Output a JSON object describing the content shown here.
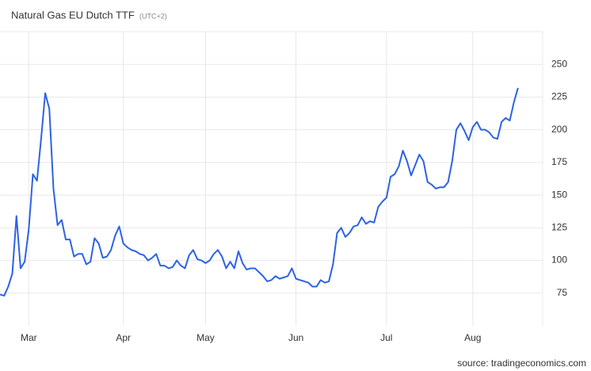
{
  "chart_data": {
    "type": "line",
    "title": "Natural Gas EU Dutch TTF",
    "subtitle": "(UTC+2)",
    "source": "source: tradingeconomics.com",
    "x": [
      0,
      1,
      2,
      3,
      4,
      5,
      6,
      7,
      8,
      9,
      10,
      11,
      12,
      13,
      14,
      15,
      16,
      17,
      18,
      19,
      20,
      21,
      22,
      23,
      24,
      25,
      26,
      27,
      28,
      29,
      30,
      31,
      32,
      33,
      34,
      35,
      36,
      37,
      38,
      39,
      40,
      41,
      42,
      43,
      44,
      45,
      46,
      47,
      48,
      49,
      50,
      51,
      52,
      53,
      54,
      55,
      56,
      57,
      58,
      59,
      60,
      61,
      62,
      63,
      64,
      65,
      66,
      67,
      68,
      69,
      70,
      71,
      72,
      73,
      74,
      75,
      76,
      77,
      78,
      79,
      80,
      81,
      82,
      83,
      84,
      85,
      86,
      87,
      88,
      89,
      90,
      91,
      92,
      93,
      94,
      95,
      96,
      97,
      98,
      99,
      100,
      101,
      102,
      103,
      104,
      105,
      106,
      107,
      108,
      109,
      110,
      111,
      112,
      113,
      114,
      115,
      116,
      117,
      118,
      119,
      120,
      121,
      122,
      123,
      124,
      125,
      126
    ],
    "series": [
      {
        "name": "Natural Gas EU Dutch TTF",
        "color": "#2d62e6",
        "values": [
          74,
          73,
          80,
          90,
          134,
          94,
          99,
          124,
          166,
          161,
          193,
          228,
          216,
          155,
          127,
          131,
          116,
          116,
          103,
          105,
          105,
          97,
          99,
          117,
          113,
          102,
          103,
          108,
          119,
          126,
          113,
          110,
          108,
          107,
          105,
          104,
          100,
          102,
          105,
          96,
          96,
          94,
          95,
          100,
          96,
          94,
          104,
          108,
          101,
          100,
          98,
          100,
          105,
          108,
          103,
          94,
          99,
          94,
          107,
          98,
          93,
          94,
          94,
          91,
          88,
          84,
          85,
          88,
          86,
          87,
          88,
          94,
          86,
          85,
          84,
          83,
          80,
          80,
          85,
          83,
          84,
          97,
          121,
          125,
          118,
          121,
          126,
          127,
          133,
          128,
          130,
          129,
          141,
          145,
          148,
          164,
          166,
          172,
          184,
          176,
          165,
          173,
          181,
          176,
          160,
          158,
          155,
          156,
          156,
          160,
          176,
          200,
          205,
          199,
          192,
          202,
          206,
          200,
          200,
          198,
          194,
          193,
          206,
          209,
          207,
          221,
          232
        ]
      }
    ],
    "xlim": [
      0,
      132
    ],
    "xticks": [
      {
        "value": 7,
        "label": "Mar"
      },
      {
        "value": 30,
        "label": "Apr"
      },
      {
        "value": 50,
        "label": "May"
      },
      {
        "value": 72,
        "label": "Jun"
      },
      {
        "value": 94,
        "label": "Jul"
      },
      {
        "value": 115,
        "label": "Aug"
      }
    ],
    "ylim": [
      50,
      275
    ],
    "yticks": [
      75,
      100,
      125,
      150,
      175,
      200,
      225,
      250
    ],
    "grid": true
  }
}
